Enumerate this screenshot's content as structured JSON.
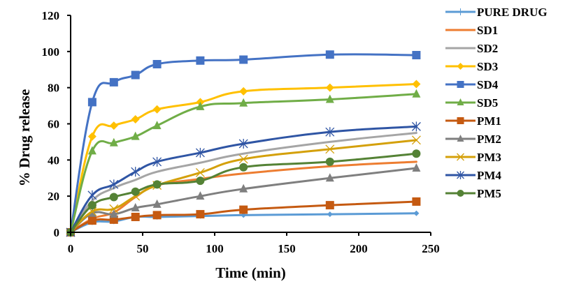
{
  "chart_data": {
    "type": "line",
    "title": "",
    "xlabel": "Time (min)",
    "ylabel": "% Drug release",
    "xlim": [
      0,
      250
    ],
    "ylim": [
      0,
      120
    ],
    "xticks": [
      0,
      50,
      100,
      150,
      200,
      250
    ],
    "yticks": [
      0,
      20,
      40,
      60,
      80,
      100,
      120
    ],
    "grid": false,
    "legend_position": "right",
    "x": [
      0,
      15,
      30,
      45,
      60,
      90,
      120,
      180,
      240
    ],
    "series": [
      {
        "name": "PURE DRUG",
        "color": "#5B9BD5",
        "marker": "plus-diamond",
        "values": [
          0,
          5.5,
          6,
          8.5,
          8.5,
          9,
          9.5,
          10,
          10.5
        ]
      },
      {
        "name": "SD1",
        "color": "#ED7D31",
        "marker": "dash",
        "values": [
          0,
          7.5,
          11,
          19.5,
          26,
          29.5,
          32.5,
          36.5,
          39
        ]
      },
      {
        "name": "SD2",
        "color": "#A5A5A5",
        "marker": "none",
        "values": [
          0,
          17.5,
          24.5,
          29,
          33.5,
          38.5,
          43.5,
          50,
          55
        ]
      },
      {
        "name": "SD3",
        "color": "#FFC000",
        "marker": "diamond",
        "values": [
          0,
          53,
          59,
          62.5,
          68,
          72,
          78,
          80,
          82
        ]
      },
      {
        "name": "SD4",
        "color": "#4472C4",
        "marker": "square",
        "values": [
          0,
          72,
          83,
          87,
          93,
          95,
          95.5,
          98.3,
          98
        ]
      },
      {
        "name": "SD5",
        "color": "#70AD47",
        "marker": "triangle",
        "values": [
          0,
          45,
          49.5,
          53,
          59,
          69.5,
          71.5,
          73.5,
          76.5
        ]
      },
      {
        "name": "PM1",
        "color": "#C55A11",
        "marker": "square",
        "values": [
          0,
          6.5,
          7,
          8.5,
          9.5,
          10,
          12.5,
          15,
          17
        ]
      },
      {
        "name": "PM2",
        "color": "#7F7F7F",
        "marker": "triangle",
        "values": [
          0,
          10.5,
          10,
          13.5,
          15.5,
          20,
          24,
          30,
          35.5
        ]
      },
      {
        "name": "PM3",
        "color": "#D4A00A",
        "marker": "x",
        "values": [
          0,
          11.5,
          13,
          20,
          26,
          33,
          40.5,
          46,
          51
        ]
      },
      {
        "name": "PM4",
        "color": "#2F55A4",
        "marker": "asterisk",
        "values": [
          0,
          20.5,
          26.5,
          33.5,
          39,
          44,
          49,
          55.5,
          58.5
        ]
      },
      {
        "name": "PM5",
        "color": "#548235",
        "marker": "circle",
        "values": [
          0,
          15,
          19.5,
          22.5,
          26.5,
          28.5,
          36,
          39,
          43.5
        ]
      }
    ]
  }
}
